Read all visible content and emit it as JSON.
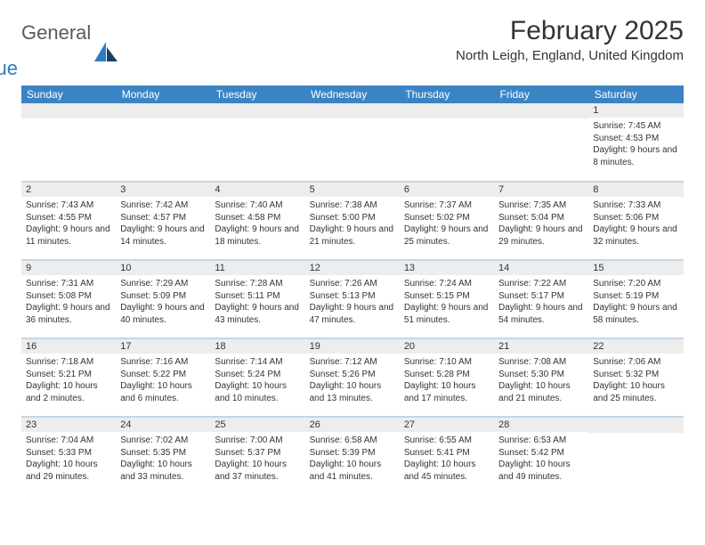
{
  "logo": {
    "word1": "General",
    "word2": "Blue"
  },
  "title": "February 2025",
  "location": "North Leigh, England, United Kingdom",
  "colors": {
    "header_bg": "#3b84c4",
    "header_text": "#ffffff",
    "daynum_bg": "#ededed",
    "row_divider": "#c4d6e6",
    "logo_gray": "#5a5a5a",
    "logo_blue": "#2f7bbf"
  },
  "weekdays": [
    "Sunday",
    "Monday",
    "Tuesday",
    "Wednesday",
    "Thursday",
    "Friday",
    "Saturday"
  ],
  "first_weekday_index": 6,
  "days": [
    {
      "n": 1,
      "sunrise": "7:45 AM",
      "sunset": "4:53 PM",
      "daylight": "9 hours and 8 minutes."
    },
    {
      "n": 2,
      "sunrise": "7:43 AM",
      "sunset": "4:55 PM",
      "daylight": "9 hours and 11 minutes."
    },
    {
      "n": 3,
      "sunrise": "7:42 AM",
      "sunset": "4:57 PM",
      "daylight": "9 hours and 14 minutes."
    },
    {
      "n": 4,
      "sunrise": "7:40 AM",
      "sunset": "4:58 PM",
      "daylight": "9 hours and 18 minutes."
    },
    {
      "n": 5,
      "sunrise": "7:38 AM",
      "sunset": "5:00 PM",
      "daylight": "9 hours and 21 minutes."
    },
    {
      "n": 6,
      "sunrise": "7:37 AM",
      "sunset": "5:02 PM",
      "daylight": "9 hours and 25 minutes."
    },
    {
      "n": 7,
      "sunrise": "7:35 AM",
      "sunset": "5:04 PM",
      "daylight": "9 hours and 29 minutes."
    },
    {
      "n": 8,
      "sunrise": "7:33 AM",
      "sunset": "5:06 PM",
      "daylight": "9 hours and 32 minutes."
    },
    {
      "n": 9,
      "sunrise": "7:31 AM",
      "sunset": "5:08 PM",
      "daylight": "9 hours and 36 minutes."
    },
    {
      "n": 10,
      "sunrise": "7:29 AM",
      "sunset": "5:09 PM",
      "daylight": "9 hours and 40 minutes."
    },
    {
      "n": 11,
      "sunrise": "7:28 AM",
      "sunset": "5:11 PM",
      "daylight": "9 hours and 43 minutes."
    },
    {
      "n": 12,
      "sunrise": "7:26 AM",
      "sunset": "5:13 PM",
      "daylight": "9 hours and 47 minutes."
    },
    {
      "n": 13,
      "sunrise": "7:24 AM",
      "sunset": "5:15 PM",
      "daylight": "9 hours and 51 minutes."
    },
    {
      "n": 14,
      "sunrise": "7:22 AM",
      "sunset": "5:17 PM",
      "daylight": "9 hours and 54 minutes."
    },
    {
      "n": 15,
      "sunrise": "7:20 AM",
      "sunset": "5:19 PM",
      "daylight": "9 hours and 58 minutes."
    },
    {
      "n": 16,
      "sunrise": "7:18 AM",
      "sunset": "5:21 PM",
      "daylight": "10 hours and 2 minutes."
    },
    {
      "n": 17,
      "sunrise": "7:16 AM",
      "sunset": "5:22 PM",
      "daylight": "10 hours and 6 minutes."
    },
    {
      "n": 18,
      "sunrise": "7:14 AM",
      "sunset": "5:24 PM",
      "daylight": "10 hours and 10 minutes."
    },
    {
      "n": 19,
      "sunrise": "7:12 AM",
      "sunset": "5:26 PM",
      "daylight": "10 hours and 13 minutes."
    },
    {
      "n": 20,
      "sunrise": "7:10 AM",
      "sunset": "5:28 PM",
      "daylight": "10 hours and 17 minutes."
    },
    {
      "n": 21,
      "sunrise": "7:08 AM",
      "sunset": "5:30 PM",
      "daylight": "10 hours and 21 minutes."
    },
    {
      "n": 22,
      "sunrise": "7:06 AM",
      "sunset": "5:32 PM",
      "daylight": "10 hours and 25 minutes."
    },
    {
      "n": 23,
      "sunrise": "7:04 AM",
      "sunset": "5:33 PM",
      "daylight": "10 hours and 29 minutes."
    },
    {
      "n": 24,
      "sunrise": "7:02 AM",
      "sunset": "5:35 PM",
      "daylight": "10 hours and 33 minutes."
    },
    {
      "n": 25,
      "sunrise": "7:00 AM",
      "sunset": "5:37 PM",
      "daylight": "10 hours and 37 minutes."
    },
    {
      "n": 26,
      "sunrise": "6:58 AM",
      "sunset": "5:39 PM",
      "daylight": "10 hours and 41 minutes."
    },
    {
      "n": 27,
      "sunrise": "6:55 AM",
      "sunset": "5:41 PM",
      "daylight": "10 hours and 45 minutes."
    },
    {
      "n": 28,
      "sunrise": "6:53 AM",
      "sunset": "5:42 PM",
      "daylight": "10 hours and 49 minutes."
    }
  ],
  "labels": {
    "sunrise": "Sunrise:",
    "sunset": "Sunset:",
    "daylight": "Daylight:"
  }
}
